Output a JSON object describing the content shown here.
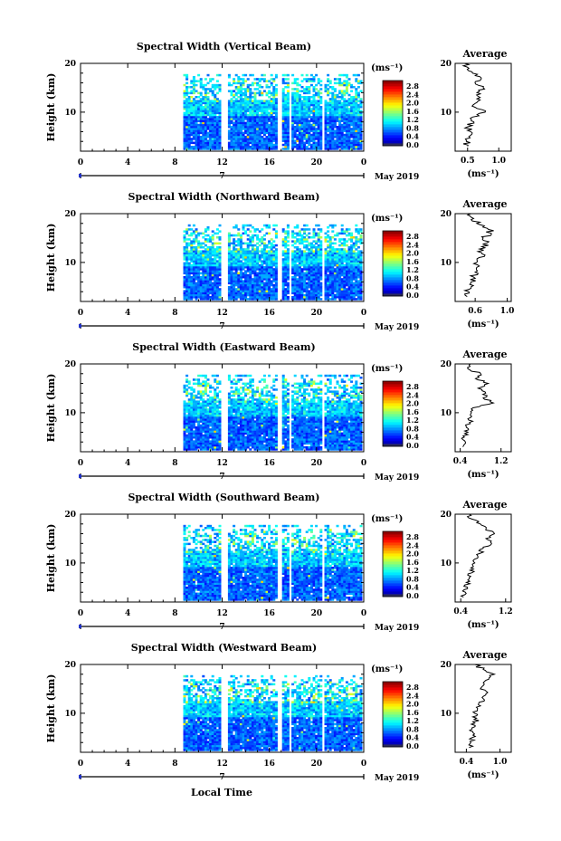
{
  "figure": {
    "y_axis_label": "Height (km)",
    "x_axis_label": "Local Time",
    "date_label": "May 2019",
    "day_label": "7",
    "colorbar_unit": "(ms⁻¹)",
    "profile_title": "Average",
    "profile_unit": "(ms⁻¹)"
  },
  "chart_data": [
    {
      "type": "heatmap",
      "title": "Spectral Width (Vertical Beam)",
      "x_ticks": [
        "0",
        "4",
        "8",
        "12",
        "16",
        "20",
        "0"
      ],
      "y_ticks": [
        "20",
        "10"
      ],
      "xlim": [
        0,
        24
      ],
      "ylim": [
        2,
        20
      ],
      "data_start_hour": 8.7,
      "gaps_hours": [
        [
          11.8,
          12.3
        ],
        [
          16.6,
          17.0
        ],
        [
          17.5,
          17.8
        ],
        [
          20.3,
          20.6
        ]
      ],
      "colorbar_ticks": [
        "2.8",
        "2.4",
        "2.0",
        "1.6",
        "1.2",
        "0.8",
        "0.4",
        "0.0"
      ],
      "profile": {
        "xlim": [
          0.3,
          1.2
        ],
        "x_ticks": [
          "0.5",
          "1.0"
        ],
        "x_tick_values": [
          0.5,
          1.0
        ],
        "heights": [
          3,
          4,
          5,
          6,
          7,
          8,
          9,
          10,
          11,
          12,
          13,
          14,
          15,
          16,
          17,
          18,
          19,
          20
        ],
        "values": [
          0.5,
          0.48,
          0.52,
          0.55,
          0.5,
          0.6,
          0.58,
          0.78,
          0.62,
          0.65,
          0.7,
          0.65,
          0.75,
          0.62,
          0.72,
          0.58,
          0.52,
          0.45
        ]
      }
    },
    {
      "type": "heatmap",
      "title": "Spectral Width (Northward Beam)",
      "x_ticks": [
        "0",
        "4",
        "8",
        "12",
        "16",
        "20",
        "0"
      ],
      "y_ticks": [
        "20",
        "10"
      ],
      "xlim": [
        0,
        24
      ],
      "ylim": [
        2,
        20
      ],
      "data_start_hour": 8.7,
      "gaps_hours": [
        [
          11.8,
          12.3
        ],
        [
          16.6,
          17.0
        ],
        [
          17.5,
          17.8
        ],
        [
          20.3,
          20.6
        ]
      ],
      "colorbar_ticks": [
        "2.8",
        "2.4",
        "2.0",
        "1.6",
        "1.2",
        "0.8",
        "0.4",
        "0.0"
      ],
      "profile": {
        "xlim": [
          0.35,
          1.05
        ],
        "x_ticks": [
          "0.6",
          "1.0"
        ],
        "x_tick_values": [
          0.6,
          1.0
        ],
        "heights": [
          3,
          4,
          5,
          6,
          7,
          8,
          9,
          10,
          11,
          12,
          13,
          14,
          15,
          16,
          17,
          18,
          19,
          20
        ],
        "values": [
          0.5,
          0.52,
          0.55,
          0.55,
          0.58,
          0.6,
          0.62,
          0.62,
          0.65,
          0.68,
          0.72,
          0.75,
          0.7,
          0.8,
          0.75,
          0.62,
          0.58,
          0.55
        ]
      }
    },
    {
      "type": "heatmap",
      "title": "Spectral Width (Eastward Beam)",
      "x_ticks": [
        "0",
        "4",
        "8",
        "12",
        "16",
        "20",
        "0"
      ],
      "y_ticks": [
        "20",
        "10"
      ],
      "xlim": [
        0,
        24
      ],
      "ylim": [
        2,
        20
      ],
      "data_start_hour": 8.7,
      "gaps_hours": [
        [
          11.8,
          12.3
        ],
        [
          16.6,
          17.0
        ],
        [
          17.5,
          17.8
        ],
        [
          20.3,
          20.6
        ]
      ],
      "colorbar_ticks": [
        "2.8",
        "2.4",
        "2.0",
        "1.6",
        "1.2",
        "0.8",
        "0.4",
        "0.0"
      ],
      "profile": {
        "xlim": [
          0.3,
          1.4
        ],
        "x_ticks": [
          "0.4",
          "1.2"
        ],
        "x_tick_values": [
          0.4,
          1.2
        ],
        "heights": [
          3,
          4,
          5,
          6,
          7,
          8,
          9,
          10,
          11,
          12,
          13,
          14,
          15,
          16,
          17,
          18,
          19,
          20
        ],
        "values": [
          0.45,
          0.5,
          0.48,
          0.55,
          0.52,
          0.58,
          0.6,
          0.62,
          0.65,
          1.05,
          0.85,
          0.9,
          0.75,
          0.95,
          0.7,
          0.8,
          0.55,
          0.6
        ]
      }
    },
    {
      "type": "heatmap",
      "title": "Spectral Width (Southward Beam)",
      "x_ticks": [
        "0",
        "4",
        "8",
        "12",
        "16",
        "20",
        "0"
      ],
      "y_ticks": [
        "20",
        "10"
      ],
      "xlim": [
        0,
        24
      ],
      "ylim": [
        2,
        20
      ],
      "data_start_hour": 8.7,
      "gaps_hours": [
        [
          11.8,
          12.3
        ],
        [
          16.6,
          17.0
        ],
        [
          17.5,
          17.8
        ],
        [
          20.3,
          20.6
        ]
      ],
      "colorbar_ticks": [
        "2.8",
        "2.4",
        "2.0",
        "1.6",
        "1.2",
        "0.8",
        "0.4",
        "0.0"
      ],
      "profile": {
        "xlim": [
          0.3,
          1.3
        ],
        "x_ticks": [
          "0.4",
          "1.2"
        ],
        "x_tick_values": [
          0.4,
          1.2
        ],
        "heights": [
          3,
          4,
          5,
          6,
          7,
          8,
          9,
          10,
          11,
          12,
          13,
          14,
          15,
          16,
          17,
          18,
          19,
          20
        ],
        "values": [
          0.45,
          0.48,
          0.52,
          0.5,
          0.55,
          0.6,
          0.58,
          0.65,
          0.7,
          0.75,
          0.8,
          0.95,
          0.85,
          1.0,
          0.85,
          0.75,
          0.6,
          0.55
        ]
      }
    },
    {
      "type": "heatmap",
      "title": "Spectral Width (Westward Beam)",
      "x_ticks": [
        "0",
        "4",
        "8",
        "12",
        "16",
        "20",
        "0"
      ],
      "y_ticks": [
        "20",
        "10"
      ],
      "xlim": [
        0,
        24
      ],
      "ylim": [
        2,
        20
      ],
      "data_start_hour": 8.7,
      "gaps_hours": [
        [
          11.8,
          12.3
        ],
        [
          16.6,
          17.0
        ],
        [
          17.5,
          17.8
        ],
        [
          20.3,
          20.6
        ]
      ],
      "colorbar_ticks": [
        "2.8",
        "2.4",
        "2.0",
        "1.6",
        "1.2",
        "0.8",
        "0.4",
        "0.0"
      ],
      "profile": {
        "xlim": [
          0.2,
          1.2
        ],
        "x_ticks": [
          "0.4",
          "1.0"
        ],
        "x_tick_values": [
          0.4,
          1.0
        ],
        "heights": [
          3,
          4,
          5,
          6,
          7,
          8,
          9,
          10,
          11,
          12,
          13,
          14,
          15,
          16,
          17,
          18,
          19,
          20
        ],
        "values": [
          0.45,
          0.48,
          0.5,
          0.52,
          0.5,
          0.55,
          0.58,
          0.55,
          0.6,
          0.62,
          0.7,
          0.75,
          0.65,
          0.72,
          0.8,
          0.9,
          0.7,
          0.55
        ]
      }
    }
  ]
}
